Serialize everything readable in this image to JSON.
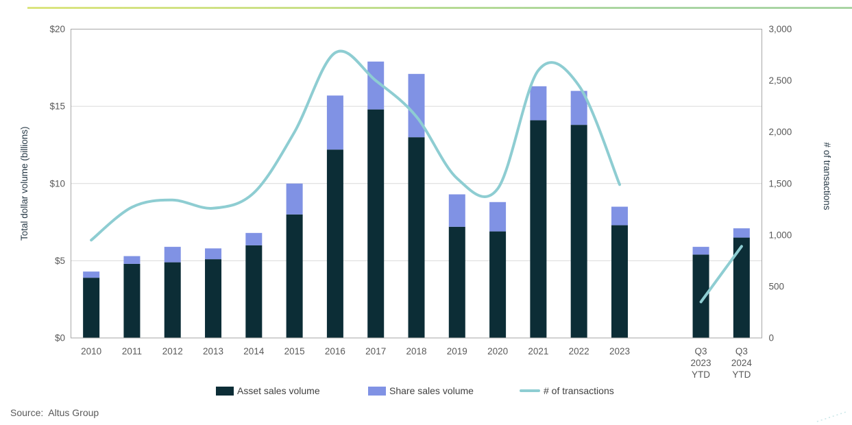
{
  "page": {
    "source_note": "Source:  Altus Group"
  },
  "style": {
    "accent_gradient": [
      "#dbe47e",
      "#c9e088",
      "#b7db93",
      "#a9d5a3"
    ],
    "plot_border_color": "#a6a6a6",
    "gridline_color": "#d9d9d9",
    "tick_label_color": "#595959",
    "axis_title_color": "#263845",
    "legend_text_color": "#404040"
  },
  "chart_data": {
    "type": "combo_stacked_bar_line",
    "title": "",
    "grid": "horizontal",
    "legend_position": "bottom",
    "categories": [
      "2010",
      "2011",
      "2012",
      "2013",
      "2014",
      "2015",
      "2016",
      "2017",
      "2018",
      "2019",
      "2020",
      "2021",
      "2022",
      "2023",
      "Q3 2023 YTD",
      "Q3 2024 YTD"
    ],
    "gap_after_index": 13,
    "series": [
      {
        "name": "Asset sales volume",
        "type": "bar",
        "stack": "volume",
        "axis": "left",
        "color": "#0c2d36",
        "values": [
          3.9,
          4.8,
          4.9,
          5.1,
          6.0,
          8.0,
          12.2,
          14.8,
          13.0,
          7.2,
          6.9,
          14.1,
          13.8,
          7.3,
          5.4,
          6.5
        ]
      },
      {
        "name": "Share sales volume",
        "type": "bar",
        "stack": "volume",
        "axis": "left",
        "color": "#8092e4",
        "values": [
          0.4,
          0.5,
          1.0,
          0.7,
          0.8,
          2.0,
          3.5,
          3.1,
          4.1,
          2.1,
          1.9,
          2.2,
          2.2,
          1.2,
          0.5,
          0.6
        ]
      },
      {
        "name": "# of transactions",
        "type": "line",
        "axis": "right",
        "color": "#8ecdd2",
        "smoothed": true,
        "segments": [
          [
            0,
            13
          ],
          [
            14,
            15
          ]
        ],
        "values": [
          950,
          1270,
          1340,
          1260,
          1410,
          2000,
          2770,
          2500,
          2150,
          1550,
          1450,
          2600,
          2450,
          1490,
          350,
          890
        ]
      }
    ],
    "left_axis": {
      "title": "Total dollar volume (billions)",
      "min": 0,
      "max": 20,
      "ticks": [
        {
          "value": 0,
          "label": "$0"
        },
        {
          "value": 5,
          "label": "$5"
        },
        {
          "value": 10,
          "label": "$10"
        },
        {
          "value": 15,
          "label": "$15"
        },
        {
          "value": 20,
          "label": "$20"
        }
      ]
    },
    "right_axis": {
      "title": "# of transactions",
      "min": 0,
      "max": 3000,
      "ticks": [
        {
          "value": 0,
          "label": "0"
        },
        {
          "value": 500,
          "label": "500"
        },
        {
          "value": 1000,
          "label": "1,000"
        },
        {
          "value": 1500,
          "label": "1,500"
        },
        {
          "value": 2000,
          "label": "2,000"
        },
        {
          "value": 2500,
          "label": "2,500"
        },
        {
          "value": 3000,
          "label": "3,000"
        }
      ]
    }
  }
}
